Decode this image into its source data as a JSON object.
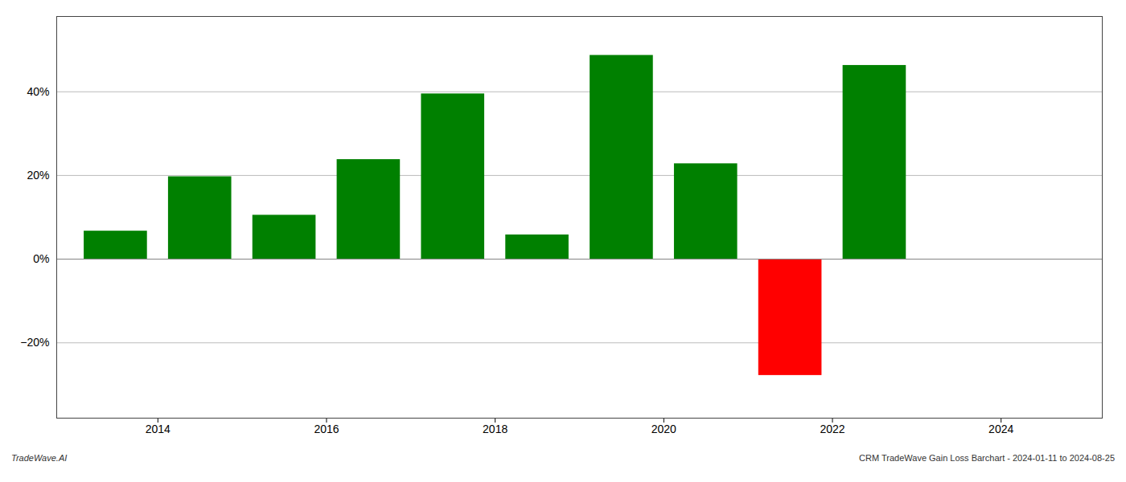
{
  "chart_data": {
    "type": "bar",
    "x": [
      2013.5,
      2014.5,
      2015.5,
      2016.5,
      2017.5,
      2018.5,
      2019.5,
      2020.5,
      2021.5,
      2022.5
    ],
    "values": [
      0.067,
      0.197,
      0.105,
      0.238,
      0.395,
      0.058,
      0.487,
      0.228,
      -0.278,
      0.463
    ],
    "colors": [
      "#008000",
      "#008000",
      "#008000",
      "#008000",
      "#008000",
      "#008000",
      "#008000",
      "#008000",
      "#ff0000",
      "#008000"
    ],
    "xlim": [
      2012.8,
      2025.2
    ],
    "xticks": [
      2014,
      2016,
      2018,
      2020,
      2022,
      2024
    ],
    "ylim": [
      -0.38,
      0.58
    ],
    "yticks": [
      {
        "value": -0.2,
        "label": "−20%"
      },
      {
        "value": 0.0,
        "label": "0%"
      },
      {
        "value": 0.2,
        "label": "20%"
      },
      {
        "value": 0.4,
        "label": "40%"
      }
    ],
    "grid": true,
    "annotations": [
      "TradeWave.AI",
      "CRM TradeWave Gain Loss Barchart - 2024-01-11 to 2024-08-25"
    ]
  }
}
